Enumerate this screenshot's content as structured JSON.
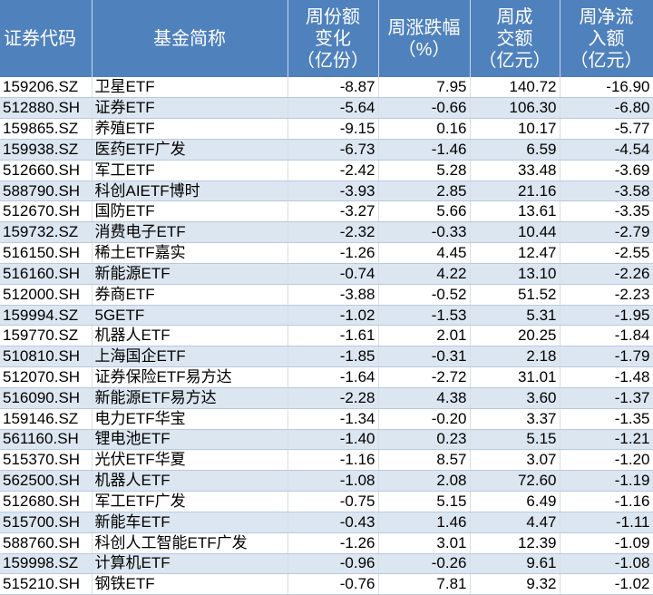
{
  "header": {
    "code": "证券代码",
    "name": "基金简称",
    "share_change": [
      "周份额",
      "变化",
      "（亿份）"
    ],
    "pct_change": [
      "周涨跌幅",
      "（%）"
    ],
    "volume": [
      "周成",
      "交额",
      "（亿元）"
    ],
    "net_inflow": [
      "周净流",
      "入额",
      "（亿元）"
    ]
  },
  "colors": {
    "header_bg": "#4f81bd",
    "row_alt_bg": "#dce6f1"
  },
  "rows": [
    [
      "159206.SZ",
      "卫星ETF",
      "-8.87",
      "7.95",
      "140.72",
      "-16.90"
    ],
    [
      "512880.SH",
      "证券ETF",
      "-5.64",
      "-0.66",
      "106.30",
      "-6.80"
    ],
    [
      "159865.SZ",
      "养殖ETF",
      "-9.15",
      "0.16",
      "10.17",
      "-5.77"
    ],
    [
      "159938.SZ",
      "医药ETF广发",
      "-6.73",
      "-1.46",
      "6.59",
      "-4.54"
    ],
    [
      "512660.SH",
      "军工ETF",
      "-2.42",
      "5.28",
      "33.48",
      "-3.69"
    ],
    [
      "588790.SH",
      "科创AIETF博时",
      "-3.93",
      "2.85",
      "21.16",
      "-3.58"
    ],
    [
      "512670.SH",
      "国防ETF",
      "-3.27",
      "5.66",
      "13.61",
      "-3.35"
    ],
    [
      "159732.SZ",
      "消费电子ETF",
      "-2.32",
      "-0.33",
      "10.44",
      "-2.79"
    ],
    [
      "516150.SH",
      "稀土ETF嘉实",
      "-1.26",
      "4.45",
      "12.47",
      "-2.55"
    ],
    [
      "516160.SH",
      "新能源ETF",
      "-0.74",
      "4.22",
      "13.10",
      "-2.26"
    ],
    [
      "512000.SH",
      "券商ETF",
      "-3.88",
      "-0.52",
      "51.52",
      "-2.23"
    ],
    [
      "159994.SZ",
      "5GETF",
      "-1.02",
      "-1.53",
      "5.31",
      "-1.95"
    ],
    [
      "159770.SZ",
      "机器人ETF",
      "-1.61",
      "2.01",
      "20.25",
      "-1.84"
    ],
    [
      "510810.SH",
      "上海国企ETF",
      "-1.85",
      "-0.31",
      "2.18",
      "-1.79"
    ],
    [
      "512070.SH",
      "证券保险ETF易方达",
      "-1.64",
      "-2.72",
      "31.01",
      "-1.48"
    ],
    [
      "516090.SH",
      "新能源ETF易方达",
      "-2.28",
      "4.38",
      "3.60",
      "-1.37"
    ],
    [
      "159146.SZ",
      "电力ETF华宝",
      "-1.34",
      "-0.20",
      "3.37",
      "-1.35"
    ],
    [
      "561160.SH",
      "锂电池ETF",
      "-1.40",
      "0.23",
      "5.15",
      "-1.21"
    ],
    [
      "515370.SH",
      "光伏ETF华夏",
      "-1.16",
      "8.57",
      "3.07",
      "-1.20"
    ],
    [
      "562500.SH",
      "机器人ETF",
      "-1.08",
      "2.08",
      "72.60",
      "-1.19"
    ],
    [
      "512680.SH",
      "军工ETF广发",
      "-0.75",
      "5.15",
      "6.49",
      "-1.16"
    ],
    [
      "515700.SH",
      "新能车ETF",
      "-0.43",
      "1.46",
      "4.47",
      "-1.11"
    ],
    [
      "588760.SH",
      "科创人工智能ETF广发",
      "-1.26",
      "3.01",
      "12.39",
      "-1.09"
    ],
    [
      "159998.SZ",
      "计算机ETF",
      "-0.96",
      "-0.26",
      "9.61",
      "-1.08"
    ],
    [
      "515210.SH",
      "钢铁ETF",
      "-0.76",
      "7.81",
      "9.32",
      "-1.02"
    ]
  ]
}
